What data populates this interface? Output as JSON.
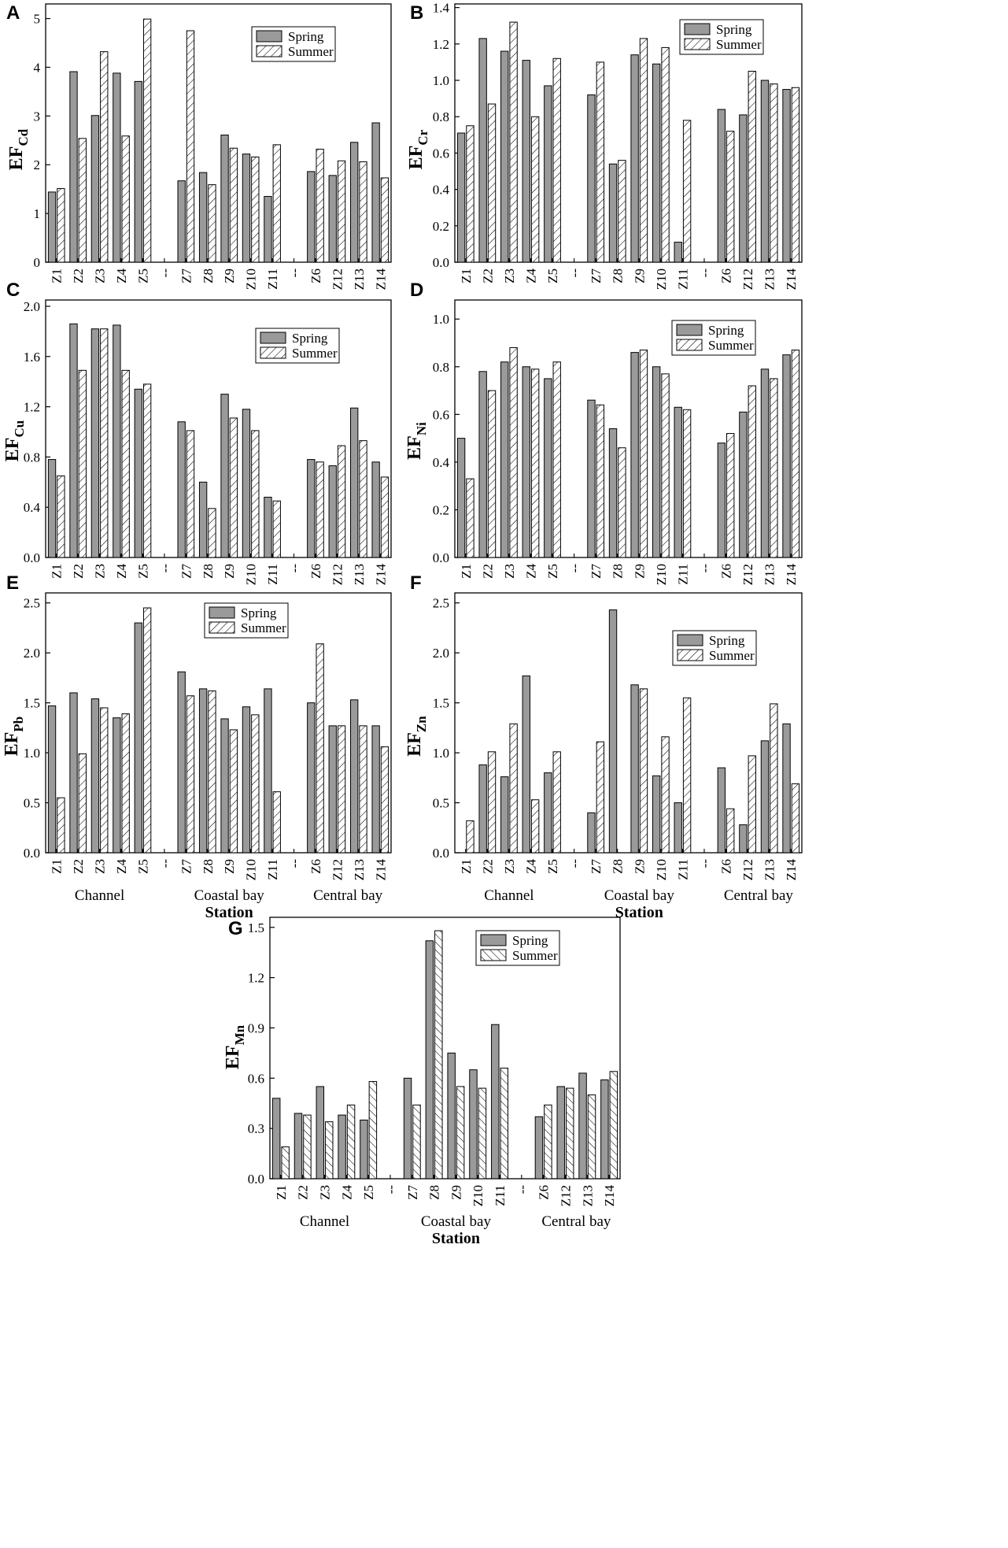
{
  "chart_data": [
    {
      "type": "bar",
      "panel": "A",
      "ylabel_main": "EF",
      "ylabel_sub": "Cd",
      "ylim": [
        0,
        5.3
      ],
      "yticks": [
        0,
        1,
        2,
        3,
        4,
        5
      ],
      "categories": [
        "Z1",
        "Z2",
        "Z3",
        "Z4",
        "Z5",
        "--",
        "Z7",
        "Z8",
        "Z9",
        "Z10",
        "Z11",
        "--",
        "Z6",
        "Z12",
        "Z13",
        "Z14"
      ],
      "series": [
        {
          "name": "Spring",
          "values": [
            1.44,
            3.91,
            3.01,
            3.88,
            3.71,
            null,
            1.67,
            1.84,
            2.61,
            2.22,
            1.35,
            null,
            1.86,
            1.78,
            2.46,
            2.86
          ]
        },
        {
          "name": "Summer",
          "values": [
            1.51,
            2.54,
            4.32,
            2.59,
            4.99,
            null,
            4.75,
            1.59,
            2.34,
            2.16,
            2.41,
            null,
            2.32,
            2.08,
            2.06,
            1.73
          ]
        }
      ],
      "legend_position": "top-right"
    },
    {
      "type": "bar",
      "panel": "B",
      "ylabel_main": "EF",
      "ylabel_sub": "Cr",
      "ylim": [
        0,
        1.42
      ],
      "yticks": [
        0.0,
        0.2,
        0.4,
        0.6,
        0.8,
        1.0,
        1.2,
        1.4
      ],
      "categories": [
        "Z1",
        "Z2",
        "Z3",
        "Z4",
        "Z5",
        "--",
        "Z7",
        "Z8",
        "Z9",
        "Z10",
        "Z11",
        "--",
        "Z6",
        "Z12",
        "Z13",
        "Z14"
      ],
      "series": [
        {
          "name": "Spring",
          "values": [
            0.71,
            1.23,
            1.16,
            1.11,
            0.97,
            null,
            0.92,
            0.54,
            1.14,
            1.09,
            0.11,
            null,
            0.84,
            0.81,
            1.0,
            0.95
          ]
        },
        {
          "name": "Summer",
          "values": [
            0.75,
            0.87,
            1.32,
            0.8,
            1.12,
            null,
            1.1,
            0.56,
            1.23,
            1.18,
            0.78,
            null,
            0.72,
            1.05,
            0.98,
            0.96
          ]
        }
      ],
      "legend_position": "top-right"
    },
    {
      "type": "bar",
      "panel": "C",
      "ylabel_main": "EF",
      "ylabel_sub": "Cu",
      "ylim": [
        0,
        2.05
      ],
      "yticks": [
        0.0,
        0.4,
        0.8,
        1.2,
        1.6,
        2.0
      ],
      "categories": [
        "Z1",
        "Z2",
        "Z3",
        "Z4",
        "Z5",
        "--",
        "Z7",
        "Z8",
        "Z9",
        "Z10",
        "Z11",
        "--",
        "Z6",
        "Z12",
        "Z13",
        "Z14"
      ],
      "series": [
        {
          "name": "Spring",
          "values": [
            0.78,
            1.86,
            1.82,
            1.85,
            1.34,
            null,
            1.08,
            0.6,
            1.3,
            1.18,
            0.48,
            null,
            0.78,
            0.73,
            1.19,
            0.76
          ]
        },
        {
          "name": "Summer",
          "values": [
            0.65,
            1.49,
            1.82,
            1.49,
            1.38,
            null,
            1.01,
            0.39,
            1.11,
            1.01,
            0.45,
            null,
            0.76,
            0.89,
            0.93,
            0.64
          ]
        }
      ],
      "legend_position": "top-right"
    },
    {
      "type": "bar",
      "panel": "D",
      "ylabel_main": "EF",
      "ylabel_sub": "Ni",
      "ylim": [
        0,
        1.08
      ],
      "yticks": [
        0.0,
        0.2,
        0.4,
        0.6,
        0.8,
        1.0
      ],
      "categories": [
        "Z1",
        "Z2",
        "Z3",
        "Z4",
        "Z5",
        "--",
        "Z7",
        "Z8",
        "Z9",
        "Z10",
        "Z11",
        "--",
        "Z6",
        "Z12",
        "Z13",
        "Z14"
      ],
      "series": [
        {
          "name": "Spring",
          "values": [
            0.5,
            0.78,
            0.82,
            0.8,
            0.75,
            null,
            0.66,
            0.54,
            0.86,
            0.8,
            0.63,
            null,
            0.48,
            0.61,
            0.79,
            0.85
          ]
        },
        {
          "name": "Summer",
          "values": [
            0.33,
            0.7,
            0.88,
            0.79,
            0.82,
            null,
            0.64,
            0.46,
            0.87,
            0.77,
            0.62,
            null,
            0.52,
            0.72,
            0.75,
            0.87
          ]
        }
      ],
      "legend_position": "top-right"
    },
    {
      "type": "bar",
      "panel": "E",
      "ylabel_main": "EF",
      "ylabel_sub": "Pb",
      "ylim": [
        0,
        2.6
      ],
      "yticks": [
        0.0,
        0.5,
        1.0,
        1.5,
        2.0,
        2.5
      ],
      "categories": [
        "Z1",
        "Z2",
        "Z3",
        "Z4",
        "Z5",
        "--",
        "Z7",
        "Z8",
        "Z9",
        "Z10",
        "Z11",
        "--",
        "Z6",
        "Z12",
        "Z13",
        "Z14"
      ],
      "series": [
        {
          "name": "Spring",
          "values": [
            1.47,
            1.6,
            1.54,
            1.35,
            2.3,
            null,
            1.81,
            1.64,
            1.34,
            1.46,
            1.64,
            null,
            1.5,
            1.27,
            1.53,
            1.27
          ]
        },
        {
          "name": "Summer",
          "values": [
            0.55,
            0.99,
            1.45,
            1.39,
            2.45,
            null,
            1.57,
            1.62,
            1.23,
            1.38,
            0.61,
            null,
            2.09,
            1.27,
            1.27,
            1.06
          ]
        }
      ],
      "group_labels": [
        "Channel",
        "Coastal bay",
        "Central bay"
      ],
      "xlabel": "Station",
      "legend_position": "top-center"
    },
    {
      "type": "bar",
      "panel": "F",
      "ylabel_main": "EF",
      "ylabel_sub": "Zn",
      "ylim": [
        0,
        2.6
      ],
      "yticks": [
        0.0,
        0.5,
        1.0,
        1.5,
        2.0,
        2.5
      ],
      "categories": [
        "Z1",
        "Z2",
        "Z3",
        "Z4",
        "Z5",
        "--",
        "Z7",
        "Z8",
        "Z9",
        "Z10",
        "Z11",
        "--",
        "Z6",
        "Z12",
        "Z13",
        "Z14"
      ],
      "series": [
        {
          "name": "Spring",
          "values": [
            0.0,
            0.88,
            0.76,
            1.77,
            0.8,
            null,
            0.4,
            2.43,
            1.68,
            0.77,
            0.5,
            null,
            0.85,
            0.28,
            1.12,
            1.29
          ]
        },
        {
          "name": "Summer",
          "values": [
            0.32,
            1.01,
            1.29,
            0.53,
            1.01,
            null,
            1.11,
            null,
            1.64,
            1.16,
            1.55,
            null,
            0.44,
            0.97,
            1.49,
            0.69
          ]
        }
      ],
      "group_labels": [
        "Channel",
        "Coastal bay",
        "Central bay"
      ],
      "xlabel": "Station",
      "legend_position": "top-right"
    },
    {
      "type": "bar",
      "panel": "G",
      "ylabel_main": "EF",
      "ylabel_sub": "Mn",
      "ylim": [
        0,
        1.56
      ],
      "yticks": [
        0.0,
        0.3,
        0.6,
        0.9,
        1.2,
        1.5
      ],
      "categories": [
        "Z1",
        "Z2",
        "Z3",
        "Z4",
        "Z5",
        "--",
        "Z7",
        "Z8",
        "Z9",
        "Z10",
        "Z11",
        "--",
        "Z6",
        "Z12",
        "Z13",
        "Z14"
      ],
      "series": [
        {
          "name": "Spring",
          "values": [
            0.48,
            0.39,
            0.55,
            0.38,
            0.35,
            null,
            0.6,
            1.42,
            0.75,
            0.65,
            0.92,
            null,
            0.37,
            0.55,
            0.63,
            0.59
          ]
        },
        {
          "name": "Summer",
          "values": [
            0.19,
            0.38,
            0.34,
            0.44,
            0.58,
            null,
            0.44,
            1.48,
            0.55,
            0.54,
            0.66,
            null,
            0.44,
            0.54,
            0.5,
            0.64
          ]
        }
      ],
      "group_labels": [
        "Channel",
        "Coastal bay",
        "Central bay"
      ],
      "xlabel": "Station",
      "legend_position": "top-right"
    }
  ],
  "colors": {
    "spring_fill": "#9a9a9a",
    "summer_fill": "#ffffff",
    "stroke": "#000000"
  }
}
